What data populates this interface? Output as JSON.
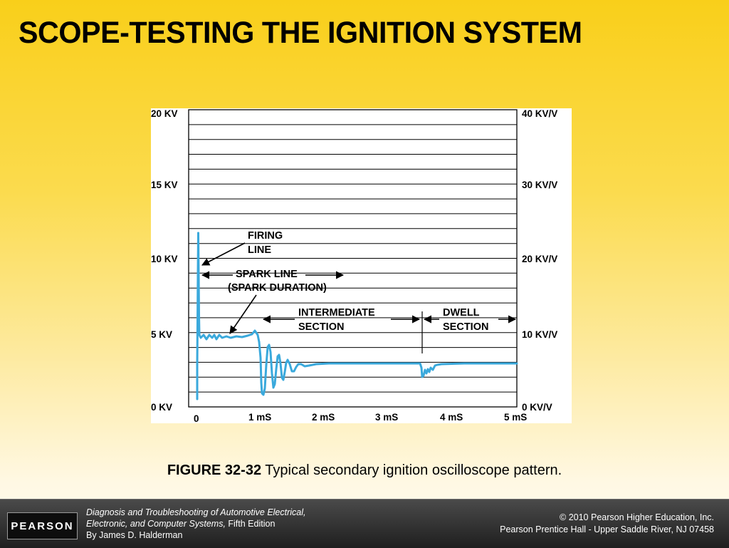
{
  "slide": {
    "title": "SCOPE-TESTING THE IGNITION SYSTEM"
  },
  "figure": {
    "left_axis_labels": [
      "20 KV",
      "15 KV",
      "10 KV",
      "5 KV",
      "0 KV"
    ],
    "right_axis_labels": [
      "40 KV/V",
      "30 KV/V",
      "20 KV/V",
      "10 KV/V",
      "0 KV/V"
    ],
    "x_axis_labels": [
      "0",
      "1 mS",
      "2 mS",
      "3 mS",
      "4 mS",
      "5 mS"
    ],
    "annotations": {
      "firing_line_1": "FIRING",
      "firing_line_2": "LINE",
      "spark_line_1": "SPARK LINE",
      "spark_line_2": "(SPARK DURATION)",
      "intermediate_1": "INTERMEDIATE",
      "intermediate_2": "SECTION",
      "dwell_1": "DWELL",
      "dwell_2": "SECTION"
    },
    "trace_color": "#3aa9dc"
  },
  "caption": {
    "label": "FIGURE 32-32",
    "text": " Typical secondary ignition oscilloscope pattern."
  },
  "footer": {
    "logo": "PEARSON",
    "book_title_1": "Diagnosis and Troubleshooting of Automotive Electrical,",
    "book_title_2": "Electronic, and Computer Systems,",
    "edition": " Fifth Edition",
    "author": "By James D. Halderman",
    "copyright": "© 2010 Pearson Higher Education, Inc.",
    "publisher": "Pearson Prentice Hall - Upper Saddle River, NJ 07458"
  }
}
